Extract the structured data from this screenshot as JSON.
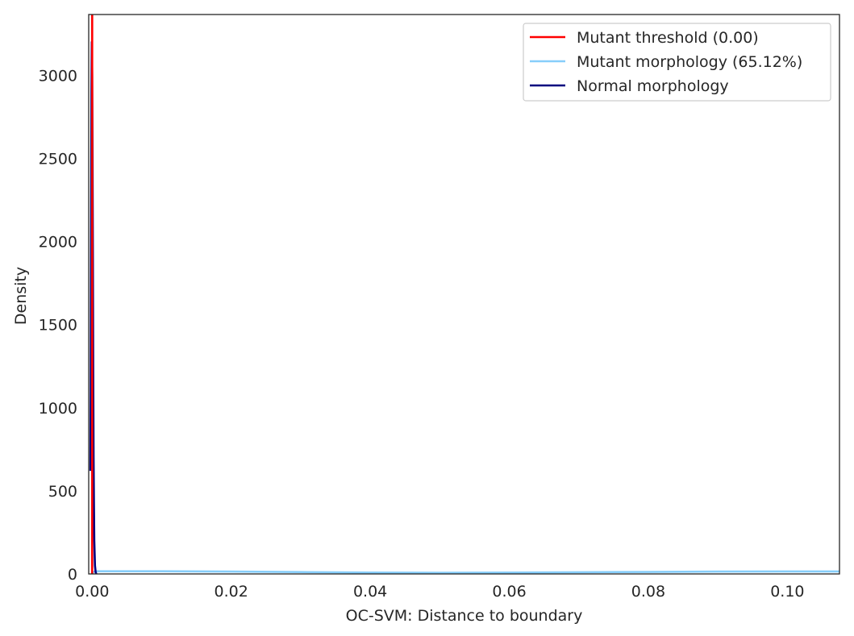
{
  "chart_data": {
    "type": "line",
    "xlabel": "OC-SVM: Distance to boundary",
    "ylabel": "Density",
    "xlim": [
      -0.0005,
      0.1075
    ],
    "ylim": [
      0,
      3365
    ],
    "x_ticks": [
      0.0,
      0.02,
      0.04,
      0.06,
      0.08,
      0.1
    ],
    "x_tick_labels": [
      "0.00",
      "0.02",
      "0.04",
      "0.06",
      "0.08",
      "0.10"
    ],
    "y_ticks": [
      0,
      500,
      1000,
      1500,
      2000,
      2500,
      3000
    ],
    "y_tick_labels": [
      "0",
      "500",
      "1000",
      "1500",
      "2000",
      "2500",
      "3000"
    ],
    "grid": false,
    "legend_position": "top-right",
    "threshold": {
      "name": "Mutant threshold (0.00)",
      "x": 0.0,
      "color": "#ff0000"
    },
    "series": [
      {
        "name": "Mutant morphology (65.12%)",
        "color": "#87cefa",
        "x": [
          0.0,
          0.0003,
          0.0006,
          0.001,
          0.005,
          0.01,
          0.02,
          0.03,
          0.04,
          0.05,
          0.06,
          0.07,
          0.08,
          0.09,
          0.1,
          0.1075
        ],
        "y": [
          10,
          14,
          16,
          16,
          16,
          16,
          14,
          11,
          8,
          7,
          8,
          10,
          12,
          14,
          15,
          15
        ]
      },
      {
        "name": "Normal morphology",
        "color": "#00007f",
        "x": [
          -0.00025,
          -0.0002,
          -0.00015,
          -0.0001,
          -5e-05,
          0.0,
          5e-05,
          0.0001,
          0.00015,
          0.0002,
          0.00025,
          0.0003,
          0.0004,
          0.0005,
          0.0006
        ],
        "y": [
          620,
          1100,
          2050,
          2900,
          3200,
          3000,
          2500,
          1900,
          1200,
          700,
          420,
          200,
          50,
          10,
          0
        ]
      }
    ],
    "legend": [
      {
        "label": "Mutant threshold (0.00)",
        "color": "#ff0000"
      },
      {
        "label": "Mutant morphology (65.12%)",
        "color": "#87cefa"
      },
      {
        "label": "Normal morphology",
        "color": "#00007f"
      }
    ]
  }
}
